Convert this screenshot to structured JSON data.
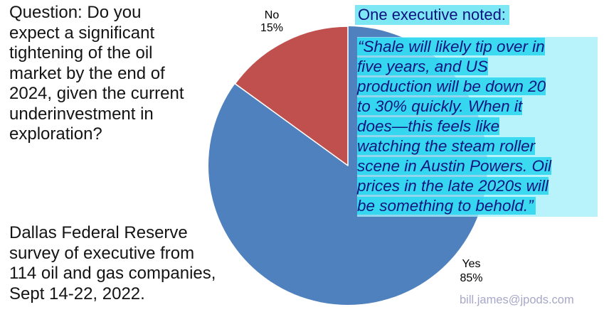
{
  "question": {
    "text": "Question: Do you\nexpect a significant\ntightening of the oil\nmarket by the end of\n2024, given the current\nunderinvestment in\nexploration?"
  },
  "source_note": {
    "text": "Dallas Federal Reserve\nsurvey of executive from\n114 oil and gas companies,\nSept 14-22, 2022."
  },
  "executive_note": {
    "header": "One executive noted:",
    "quote": "“Shale will likely tip over in\nfive years, and US\nproduction will be down 20\nto 30% quickly. When it\ndoes—this feels like\nwatching the steam roller\nscene in Austin Powers. Oil\nprices in the late 2020s will\nbe something to behold.”"
  },
  "contact_email": "bill.james@jpods.com",
  "chart_data": {
    "type": "pie",
    "title": "Question: Do you expect a significant tightening of the oil market by the end of 2024, given the current underinvestment in exploration?",
    "slices": [
      {
        "label": "Yes",
        "value": 85,
        "color": "#4e81bd"
      },
      {
        "label": "No",
        "value": 15,
        "color": "#c0504d"
      }
    ],
    "start_angle": "12 o'clock",
    "no_slice_direction": "counterclockwise from top",
    "divider_color": "#ffffff",
    "labels": {
      "no": "No\n15%",
      "yes": "Yes\n85%"
    }
  },
  "colors": {
    "quote_text": "#14147e",
    "header_highlight": "#7de7f4",
    "quote_highlight": "#24d6ef",
    "quote_panel": "#a4eefa",
    "email_text": "#a7a7c8"
  }
}
